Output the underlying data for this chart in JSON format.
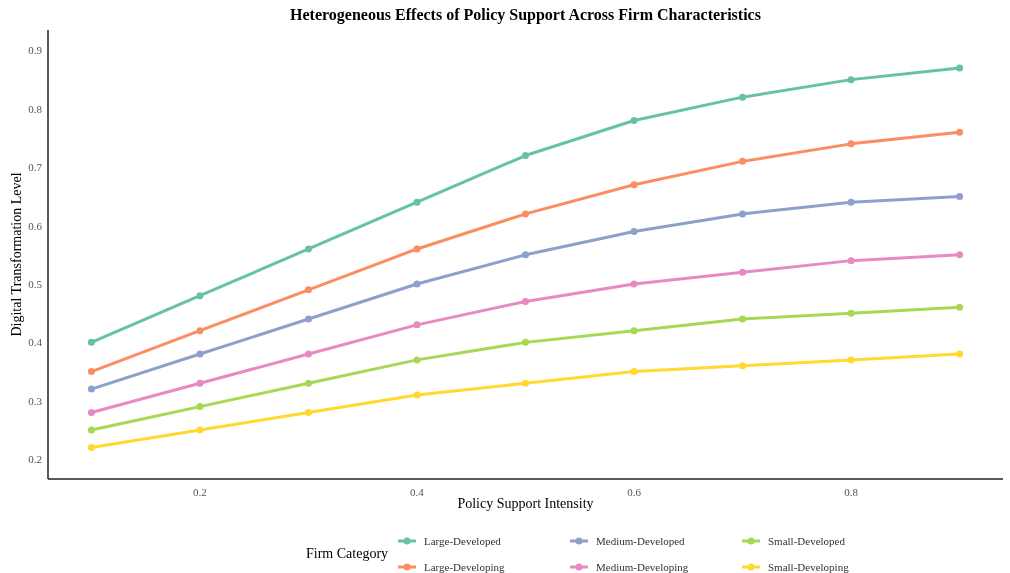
{
  "chart_data": {
    "type": "line",
    "title": "Heterogeneous Effects of Policy Support Across Firm Characteristics",
    "xlabel": "Policy Support Intensity",
    "ylabel": "Digital Transformation Level",
    "legend_title": "Firm Category",
    "legend": "bottom",
    "marker": "circle",
    "line_style": "solid",
    "grid": false,
    "x": [
      0.1,
      0.2,
      0.3,
      0.4,
      0.5,
      0.6,
      0.7,
      0.8,
      0.9
    ],
    "xlim": [
      0.06,
      0.94
    ],
    "xticks": [
      0.2,
      0.4,
      0.6,
      0.8
    ],
    "ylim": [
      0.166,
      0.935
    ],
    "yticks": [
      0.2,
      0.3,
      0.4,
      0.5,
      0.6,
      0.7,
      0.8,
      0.9
    ],
    "series": [
      {
        "name": "Large-Developed",
        "color": "#66c2a5",
        "values": [
          0.4,
          0.48,
          0.56,
          0.64,
          0.72,
          0.78,
          0.82,
          0.85,
          0.87
        ]
      },
      {
        "name": "Large-Developing",
        "color": "#fc8d62",
        "values": [
          0.35,
          0.42,
          0.49,
          0.56,
          0.62,
          0.67,
          0.71,
          0.74,
          0.76
        ]
      },
      {
        "name": "Medium-Developed",
        "color": "#8da0cb",
        "values": [
          0.32,
          0.38,
          0.44,
          0.5,
          0.55,
          0.59,
          0.62,
          0.64,
          0.65
        ]
      },
      {
        "name": "Medium-Developing",
        "color": "#e78ac3",
        "values": [
          0.28,
          0.33,
          0.38,
          0.43,
          0.47,
          0.5,
          0.52,
          0.54,
          0.55
        ]
      },
      {
        "name": "Small-Developed",
        "color": "#a6d854",
        "values": [
          0.25,
          0.29,
          0.33,
          0.37,
          0.4,
          0.42,
          0.44,
          0.45,
          0.46
        ]
      },
      {
        "name": "Small-Developing",
        "color": "#ffd92f",
        "values": [
          0.22,
          0.25,
          0.28,
          0.31,
          0.33,
          0.35,
          0.36,
          0.37,
          0.38
        ]
      }
    ]
  }
}
